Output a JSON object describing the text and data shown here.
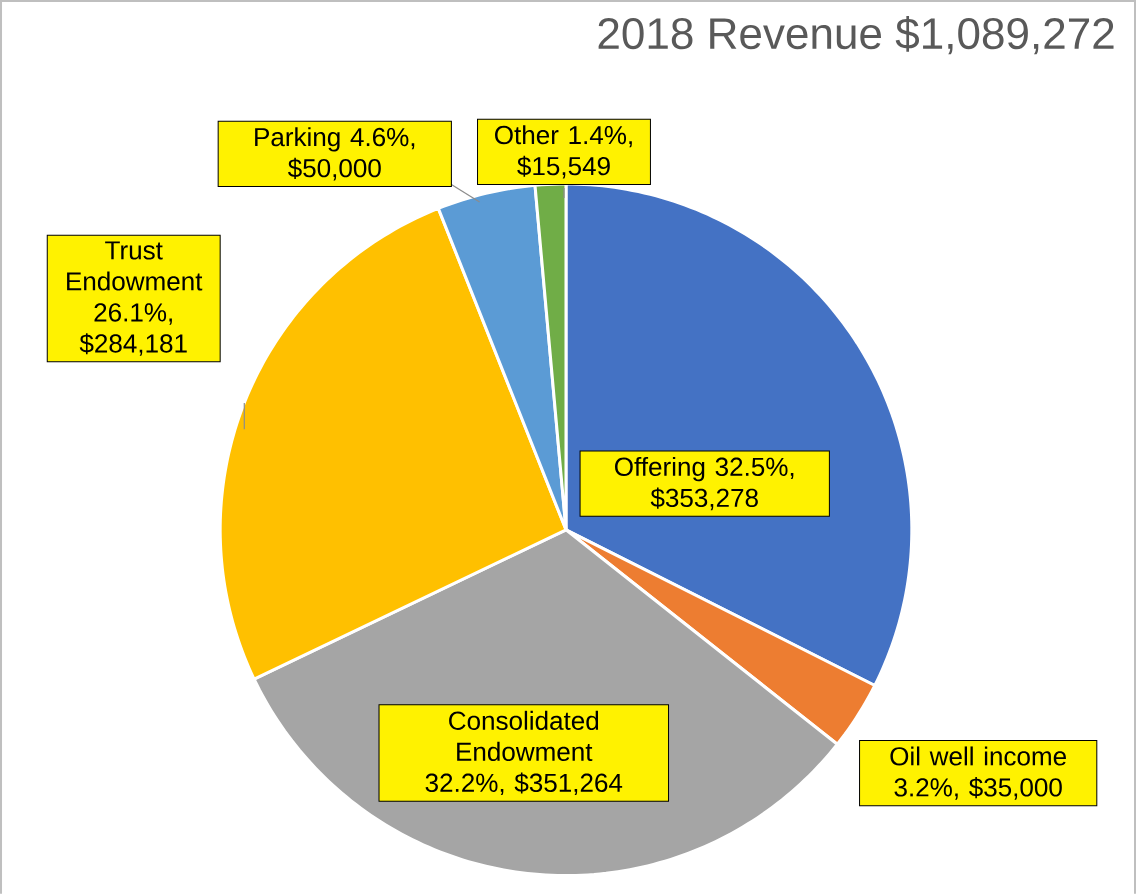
{
  "chart_data": {
    "type": "pie",
    "title": "2018 Revenue $1,089,272",
    "categories": [
      "Offering",
      "Oil well income",
      "Consolidated Endowment",
      "Trust Endowment",
      "Parking",
      "Other"
    ],
    "values": [
      353278,
      35000,
      351264,
      284181,
      50000,
      15549
    ],
    "value_labels": [
      "32.5%, $353,278",
      "3.2%, $35,000",
      "32.2%, $351,264",
      "26.1%, $284,181",
      "4.6%, $50,000",
      "1.4%, $15,549"
    ],
    "colors": [
      "#4472c4",
      "#ed7d31",
      "#a5a5a5",
      "#ffc000",
      "#5b9bd5",
      "#70ad47"
    ]
  }
}
